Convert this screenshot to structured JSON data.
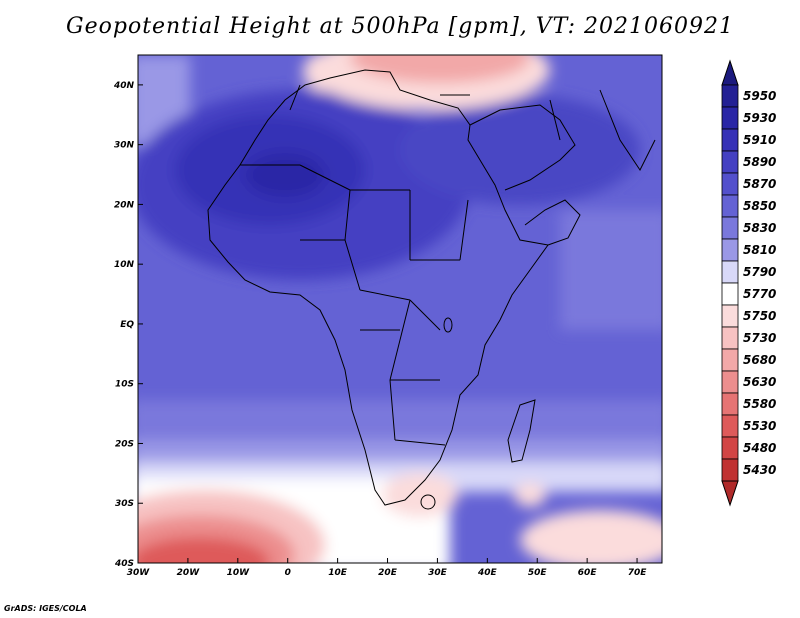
{
  "title": "Geopotential Height at 500hPa [gpm], VT: 2021060921",
  "credit": "GrADS: IGES/COLA",
  "map": {
    "lon_range": [
      -30,
      75
    ],
    "lat_range": [
      -40,
      45
    ],
    "lon_ticks": [
      {
        "value": -30,
        "label": "30W"
      },
      {
        "value": -20,
        "label": "20W"
      },
      {
        "value": -10,
        "label": "10W"
      },
      {
        "value": 0,
        "label": "0"
      },
      {
        "value": 10,
        "label": "10E"
      },
      {
        "value": 20,
        "label": "20E"
      },
      {
        "value": 30,
        "label": "30E"
      },
      {
        "value": 40,
        "label": "40E"
      },
      {
        "value": 50,
        "label": "50E"
      },
      {
        "value": 60,
        "label": "60E"
      },
      {
        "value": 70,
        "label": "70E"
      }
    ],
    "lat_ticks": [
      {
        "value": 40,
        "label": "40N"
      },
      {
        "value": 30,
        "label": "30N"
      },
      {
        "value": 20,
        "label": "20N"
      },
      {
        "value": 10,
        "label": "10N"
      },
      {
        "value": 0,
        "label": "EQ"
      },
      {
        "value": -10,
        "label": "10S"
      },
      {
        "value": -20,
        "label": "20S"
      },
      {
        "value": -30,
        "label": "30S"
      },
      {
        "value": -40,
        "label": "40S"
      }
    ]
  },
  "colorbar": {
    "levels_top_to_bottom": [
      {
        "label": "5950",
        "color": "#232094"
      },
      {
        "label": "5930",
        "color": "#2a26a6"
      },
      {
        "label": "5910",
        "color": "#3631b6"
      },
      {
        "label": "5890",
        "color": "#4440c2"
      },
      {
        "label": "5870",
        "color": "#5350cc"
      },
      {
        "label": "5850",
        "color": "#6462d4"
      },
      {
        "label": "5830",
        "color": "#7a78dc"
      },
      {
        "label": "5810",
        "color": "#9a98e6"
      },
      {
        "label": "5790",
        "color": "#d8d8f8"
      },
      {
        "label": "5770",
        "color": "#ffffff"
      },
      {
        "label": "5750",
        "color": "#fbdcdc"
      },
      {
        "label": "5730",
        "color": "#f7c2c2"
      },
      {
        "label": "5680",
        "color": "#f2a8a8"
      },
      {
        "label": "5630",
        "color": "#ec8e8e"
      },
      {
        "label": "5580",
        "color": "#e67474"
      },
      {
        "label": "5530",
        "color": "#de5a5a"
      },
      {
        "label": "5480",
        "color": "#d24545"
      },
      {
        "label": "5430",
        "color": "#c03232"
      }
    ],
    "top_arrow_color": "#1c1a7e",
    "bottom_arrow_color": "#b02a2a"
  }
}
